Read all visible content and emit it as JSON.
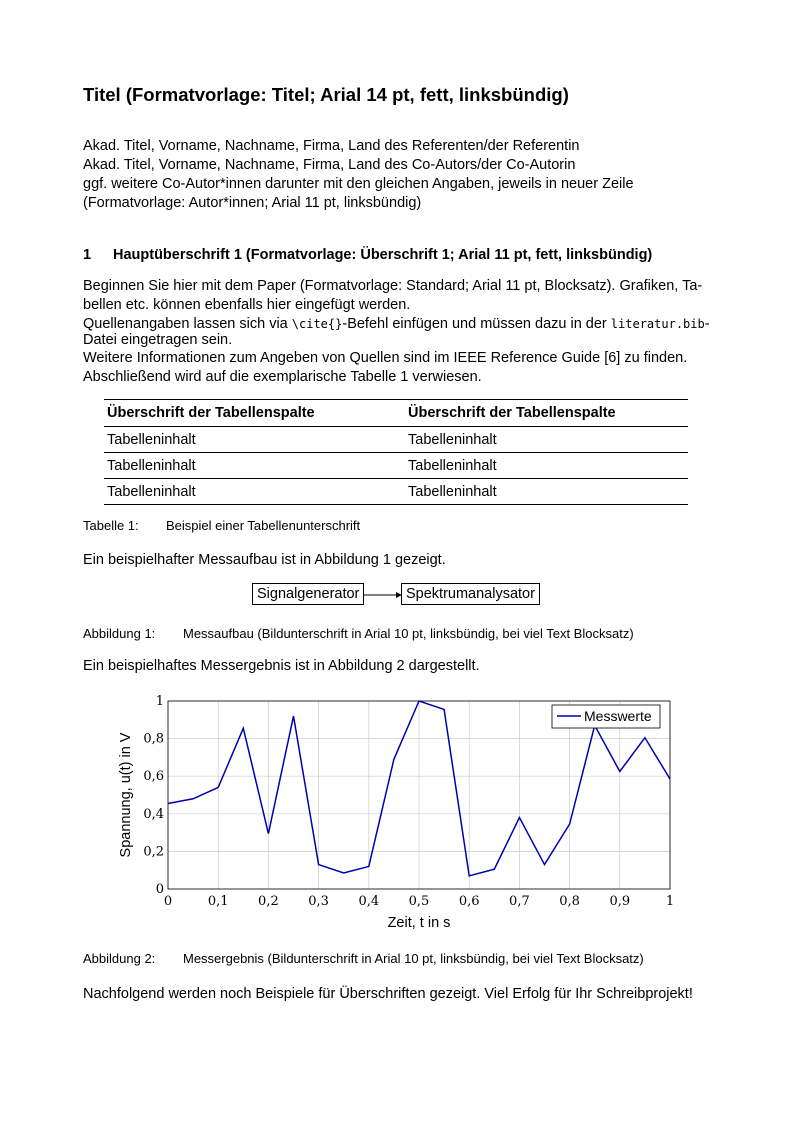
{
  "title": "Titel (Formatvorlage: Titel; Arial 14 pt, fett, linksbündig)",
  "authors": [
    "Akad. Titel, Vorname, Nachname, Firma, Land des Referenten/der Referentin",
    "Akad. Titel, Vorname, Nachname, Firma, Land des Co-Autors/der Co-Autorin",
    "ggf. weitere Co-Autor*innen darunter mit den gleichen Angaben, jeweils in neuer Zeile",
    "(Formatvorlage: Autor*innen; Arial 11 pt, linksbündig)"
  ],
  "section": {
    "number": "1",
    "title": "Hauptüberschrift 1 (Formatvorlage: Überschrift 1; Arial 11 pt, fett, linksbündig)"
  },
  "body": {
    "l1": "Beginnen Sie hier mit dem Paper (Formatvorlage: Standard; Arial 11 pt, Blocksatz). Grafiken, Ta-",
    "l2": "bellen etc. können ebenfalls hier eingefügt werden.",
    "l3a": "Quellenangaben lassen sich via ",
    "l3b": "\\cite{}",
    "l3c": "-Befehl einfügen und müssen dazu in der ",
    "l3d": "literatur.bib",
    "l3e": "-",
    "l4": "Datei eingetragen sein.",
    "l5": "Weitere Informationen zum Angeben von Quellen sind im IEEE Reference Guide [6] zu finden.",
    "l6": "Abschließend wird auf die exemplarische Tabelle 1 verwiesen."
  },
  "table": {
    "headers": [
      "Überschrift der Tabellenspalte",
      "Überschrift der Tabellenspalte"
    ],
    "rows": [
      [
        "Tabelleninhalt",
        "Tabelleninhalt"
      ],
      [
        "Tabelleninhalt",
        "Tabelleninhalt"
      ],
      [
        "Tabelleninhalt",
        "Tabelleninhalt"
      ]
    ],
    "caption_label": "Tabelle 1:",
    "caption": "Beispiel einer Tabellenunterschrift"
  },
  "fig1": {
    "intro": "Ein beispielhafter Messaufbau ist in Abbildung 1 gezeigt.",
    "box1": "Signalgenerator",
    "box2": "Spektrumanalysator",
    "caption_label": "Abbildung 1:",
    "caption": "Messaufbau (Bildunterschrift in Arial 10 pt, linksbündig, bei viel Text Blocksatz)"
  },
  "fig2": {
    "intro": "Ein beispielhaftes Messergebnis ist in Abbildung 2 dargestellt.",
    "caption_label": "Abbildung 2:",
    "caption": "Messergebnis (Bildunterschrift in Arial 10 pt, linksbündig, bei viel Text Blocksatz)"
  },
  "closing": "Nachfolgend werden noch Beispiele für Überschriften gezeigt. Viel Erfolg für Ihr Schreibprojekt!",
  "chart_data": {
    "type": "line",
    "xlabel": "Zeit, t in s",
    "ylabel": "Spannung, u(t) in V",
    "xlim": [
      0,
      1
    ],
    "ylim": [
      0,
      1
    ],
    "grid": true,
    "legend": "top-right",
    "xticks": [
      "0",
      "0,1",
      "0,2",
      "0,3",
      "0,4",
      "0,5",
      "0,6",
      "0,7",
      "0,8",
      "0,9",
      "1"
    ],
    "yticks": [
      "0",
      "0,2",
      "0,4",
      "0,6",
      "0,8",
      "1"
    ],
    "series": [
      {
        "name": "Messwerte",
        "color": "#0000b0",
        "x": [
          0,
          0.05,
          0.1,
          0.15,
          0.2,
          0.25,
          0.3,
          0.35,
          0.4,
          0.45,
          0.5,
          0.55,
          0.6,
          0.65,
          0.7,
          0.75,
          0.8,
          0.85,
          0.9,
          0.95,
          1.0
        ],
        "y": [
          0.455,
          0.48,
          0.54,
          0.855,
          0.295,
          0.92,
          0.13,
          0.085,
          0.12,
          0.69,
          1.0,
          0.955,
          0.07,
          0.105,
          0.38,
          0.13,
          0.345,
          0.87,
          0.625,
          0.805,
          0.585
        ]
      }
    ]
  }
}
